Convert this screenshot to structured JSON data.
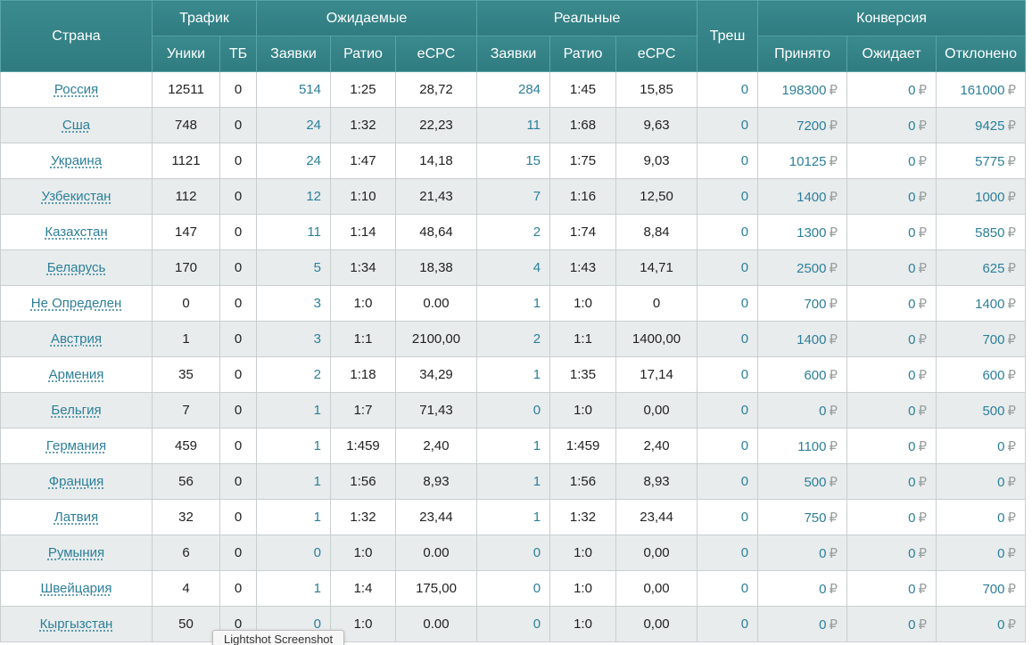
{
  "headers": {
    "country": "Страна",
    "traffic": "Трафик",
    "expected": "Ожидаемые",
    "real": "Реальные",
    "trash": "Треш",
    "conversion": "Конверсия",
    "uniques": "Уники",
    "tb": "ТБ",
    "exp_requests": "Заявки",
    "exp_ratio": "Ратио",
    "exp_ecpc": "eCPC",
    "real_requests": "Заявки",
    "real_ratio": "Ратио",
    "real_ecpc": "eCPC",
    "accepted": "Принято",
    "pending": "Ожидает",
    "rejected": "Отклонено"
  },
  "currency_symbol": "₽",
  "rows": [
    {
      "country": "Россия",
      "uniques": "12511",
      "tb": "0",
      "exp_requests": "514",
      "exp_ratio": "1:25",
      "exp_ecpc": "28,72",
      "real_requests": "284",
      "real_ratio": "1:45",
      "real_ecpc": "15,85",
      "trash": "0",
      "accepted": "198300",
      "pending": "0",
      "rejected": "161000"
    },
    {
      "country": "Сша",
      "uniques": "748",
      "tb": "0",
      "exp_requests": "24",
      "exp_ratio": "1:32",
      "exp_ecpc": "22,23",
      "real_requests": "11",
      "real_ratio": "1:68",
      "real_ecpc": "9,63",
      "trash": "0",
      "accepted": "7200",
      "pending": "0",
      "rejected": "9425"
    },
    {
      "country": "Украина",
      "uniques": "1121",
      "tb": "0",
      "exp_requests": "24",
      "exp_ratio": "1:47",
      "exp_ecpc": "14,18",
      "real_requests": "15",
      "real_ratio": "1:75",
      "real_ecpc": "9,03",
      "trash": "0",
      "accepted": "10125",
      "pending": "0",
      "rejected": "5775"
    },
    {
      "country": "Узбекистан",
      "uniques": "112",
      "tb": "0",
      "exp_requests": "12",
      "exp_ratio": "1:10",
      "exp_ecpc": "21,43",
      "real_requests": "7",
      "real_ratio": "1:16",
      "real_ecpc": "12,50",
      "trash": "0",
      "accepted": "1400",
      "pending": "0",
      "rejected": "1000"
    },
    {
      "country": "Казахстан",
      "uniques": "147",
      "tb": "0",
      "exp_requests": "11",
      "exp_ratio": "1:14",
      "exp_ecpc": "48,64",
      "real_requests": "2",
      "real_ratio": "1:74",
      "real_ecpc": "8,84",
      "trash": "0",
      "accepted": "1300",
      "pending": "0",
      "rejected": "5850"
    },
    {
      "country": "Беларусь",
      "uniques": "170",
      "tb": "0",
      "exp_requests": "5",
      "exp_ratio": "1:34",
      "exp_ecpc": "18,38",
      "real_requests": "4",
      "real_ratio": "1:43",
      "real_ecpc": "14,71",
      "trash": "0",
      "accepted": "2500",
      "pending": "0",
      "rejected": "625"
    },
    {
      "country": "Не Определен",
      "uniques": "0",
      "tb": "0",
      "exp_requests": "3",
      "exp_ratio": "1:0",
      "exp_ecpc": "0.00",
      "real_requests": "1",
      "real_ratio": "1:0",
      "real_ecpc": "0",
      "trash": "0",
      "accepted": "700",
      "pending": "0",
      "rejected": "1400"
    },
    {
      "country": "Австрия",
      "uniques": "1",
      "tb": "0",
      "exp_requests": "3",
      "exp_ratio": "1:1",
      "exp_ecpc": "2100,00",
      "real_requests": "2",
      "real_ratio": "1:1",
      "real_ecpc": "1400,00",
      "trash": "0",
      "accepted": "1400",
      "pending": "0",
      "rejected": "700"
    },
    {
      "country": "Армения",
      "uniques": "35",
      "tb": "0",
      "exp_requests": "2",
      "exp_ratio": "1:18",
      "exp_ecpc": "34,29",
      "real_requests": "1",
      "real_ratio": "1:35",
      "real_ecpc": "17,14",
      "trash": "0",
      "accepted": "600",
      "pending": "0",
      "rejected": "600"
    },
    {
      "country": "Бельгия",
      "uniques": "7",
      "tb": "0",
      "exp_requests": "1",
      "exp_ratio": "1:7",
      "exp_ecpc": "71,43",
      "real_requests": "0",
      "real_ratio": "1:0",
      "real_ecpc": "0,00",
      "trash": "0",
      "accepted": "0",
      "pending": "0",
      "rejected": "500"
    },
    {
      "country": "Германия",
      "uniques": "459",
      "tb": "0",
      "exp_requests": "1",
      "exp_ratio": "1:459",
      "exp_ecpc": "2,40",
      "real_requests": "1",
      "real_ratio": "1:459",
      "real_ecpc": "2,40",
      "trash": "0",
      "accepted": "1100",
      "pending": "0",
      "rejected": "0"
    },
    {
      "country": "Франция",
      "uniques": "56",
      "tb": "0",
      "exp_requests": "1",
      "exp_ratio": "1:56",
      "exp_ecpc": "8,93",
      "real_requests": "1",
      "real_ratio": "1:56",
      "real_ecpc": "8,93",
      "trash": "0",
      "accepted": "500",
      "pending": "0",
      "rejected": "0"
    },
    {
      "country": "Латвия",
      "uniques": "32",
      "tb": "0",
      "exp_requests": "1",
      "exp_ratio": "1:32",
      "exp_ecpc": "23,44",
      "real_requests": "1",
      "real_ratio": "1:32",
      "real_ecpc": "23,44",
      "trash": "0",
      "accepted": "750",
      "pending": "0",
      "rejected": "0"
    },
    {
      "country": "Румыния",
      "uniques": "6",
      "tb": "0",
      "exp_requests": "0",
      "exp_ratio": "1:0",
      "exp_ecpc": "0.00",
      "real_requests": "0",
      "real_ratio": "1:0",
      "real_ecpc": "0,00",
      "trash": "0",
      "accepted": "0",
      "pending": "0",
      "rejected": "0"
    },
    {
      "country": "Швейцария",
      "uniques": "4",
      "tb": "0",
      "exp_requests": "1",
      "exp_ratio": "1:4",
      "exp_ecpc": "175,00",
      "real_requests": "0",
      "real_ratio": "1:0",
      "real_ecpc": "0,00",
      "trash": "0",
      "accepted": "0",
      "pending": "0",
      "rejected": "700"
    },
    {
      "country": "Кыргызстан",
      "uniques": "50",
      "tb": "0",
      "exp_requests": "0",
      "exp_ratio": "1:0",
      "exp_ecpc": "0.00",
      "real_requests": "0",
      "real_ratio": "1:0",
      "real_ecpc": "0,00",
      "trash": "0",
      "accepted": "0",
      "pending": "0",
      "rejected": "0"
    }
  ],
  "tooltip": "Lightshot Screenshot"
}
